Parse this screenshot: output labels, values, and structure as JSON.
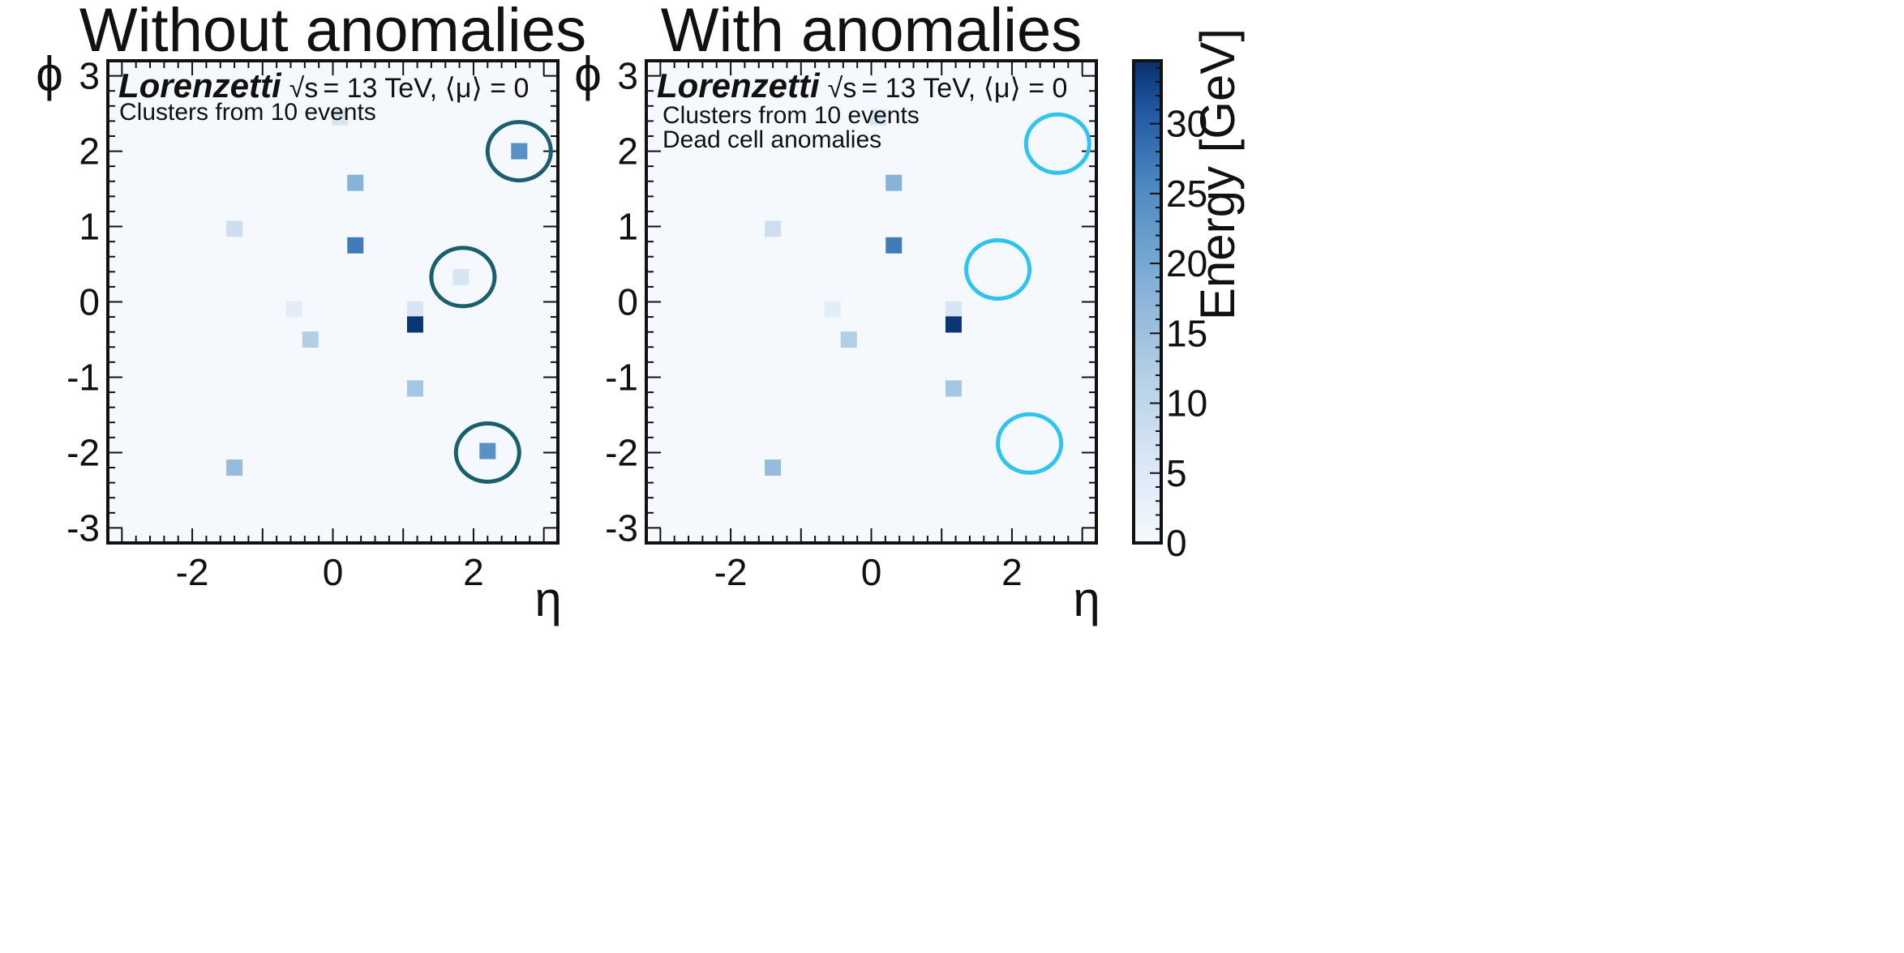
{
  "chart_data": [
    {
      "type": "heatmap",
      "title": "Without anomalies",
      "xlabel": "η",
      "ylabel": "ϕ",
      "xlim": [
        -3.2,
        3.2
      ],
      "ylim": [
        -3.2,
        3.2
      ],
      "xticks": [
        -2,
        0,
        2
      ],
      "yticks": [
        3,
        2,
        1,
        0,
        -1,
        -2,
        -3
      ],
      "xtick_labels": [
        "-2",
        "0",
        "2"
      ],
      "ytick_labels": [
        "3",
        "2",
        "1",
        "0",
        "-1",
        "-2",
        "-3"
      ],
      "brand": "Lorenzetti",
      "brand_info_sqrt": "√s",
      "brand_info_rest": "= 13 TeV, ⟨μ⟩ = 0",
      "legend": [
        "Clusters from 10 events"
      ],
      "points": [
        {
          "eta": 0.1,
          "phi": 2.45,
          "energy": 6
        },
        {
          "eta": 2.65,
          "phi": 2.0,
          "energy": 24
        },
        {
          "eta": 0.32,
          "phi": 1.58,
          "energy": 18
        },
        {
          "eta": -1.4,
          "phi": 0.97,
          "energy": 8
        },
        {
          "eta": 0.32,
          "phi": 0.75,
          "energy": 27
        },
        {
          "eta": 1.82,
          "phi": 0.33,
          "energy": 6
        },
        {
          "eta": -0.55,
          "phi": -0.1,
          "energy": 4
        },
        {
          "eta": 1.17,
          "phi": -0.1,
          "energy": 6
        },
        {
          "eta": 1.17,
          "phi": -0.3,
          "energy": 34
        },
        {
          "eta": -0.32,
          "phi": -0.5,
          "energy": 12
        },
        {
          "eta": 1.17,
          "phi": -1.15,
          "energy": 14
        },
        {
          "eta": 2.2,
          "phi": -1.98,
          "energy": 24
        },
        {
          "eta": -1.4,
          "phi": -2.2,
          "energy": 16
        }
      ],
      "highlight_circles": [
        {
          "eta": 2.65,
          "phi": 2.0
        },
        {
          "eta": 1.85,
          "phi": 0.33
        },
        {
          "eta": 2.2,
          "phi": -2.0
        }
      ],
      "circle_color": "#1b5e6e"
    },
    {
      "type": "heatmap",
      "title": "With anomalies",
      "xlabel": "η",
      "ylabel": "ϕ",
      "xlim": [
        -3.2,
        3.2
      ],
      "ylim": [
        -3.2,
        3.2
      ],
      "xticks": [
        -2,
        0,
        2
      ],
      "yticks": [
        3,
        2,
        1,
        0,
        -1,
        -2,
        -3
      ],
      "xtick_labels": [
        "-2",
        "0",
        "2"
      ],
      "ytick_labels": [
        "3",
        "2",
        "1",
        "0",
        "-1",
        "-2",
        "-3"
      ],
      "brand": "Lorenzetti",
      "brand_info_sqrt": "√s",
      "brand_info_rest": "= 13 TeV, ⟨μ⟩ = 0",
      "legend": [
        "Clusters from 10 events",
        "Dead cell anomalies"
      ],
      "points": [
        {
          "eta": 0.1,
          "phi": 2.45,
          "energy": 6
        },
        {
          "eta": 0.32,
          "phi": 1.58,
          "energy": 18
        },
        {
          "eta": -1.4,
          "phi": 0.97,
          "energy": 8
        },
        {
          "eta": 0.32,
          "phi": 0.75,
          "energy": 27
        },
        {
          "eta": -0.55,
          "phi": -0.1,
          "energy": 4
        },
        {
          "eta": 1.17,
          "phi": -0.1,
          "energy": 6
        },
        {
          "eta": 1.17,
          "phi": -0.3,
          "energy": 34
        },
        {
          "eta": -0.32,
          "phi": -0.5,
          "energy": 12
        },
        {
          "eta": 1.17,
          "phi": -1.15,
          "energy": 14
        },
        {
          "eta": -1.4,
          "phi": -2.2,
          "energy": 16
        }
      ],
      "highlight_circles": [
        {
          "eta": 2.65,
          "phi": 2.1
        },
        {
          "eta": 1.8,
          "phi": 0.43
        },
        {
          "eta": 2.25,
          "phi": -1.88
        }
      ],
      "circle_color": "#2ec4ee"
    }
  ],
  "colorbar": {
    "label": "Energy [GeV]",
    "min": 0,
    "max": 34.5,
    "ticks": [
      0,
      5,
      10,
      15,
      20,
      25,
      30
    ],
    "tick_labels": [
      "0",
      "5",
      "10",
      "15",
      "20",
      "25",
      "30"
    ],
    "color_low": "#f5f9fe",
    "color_high": "#08306b"
  }
}
